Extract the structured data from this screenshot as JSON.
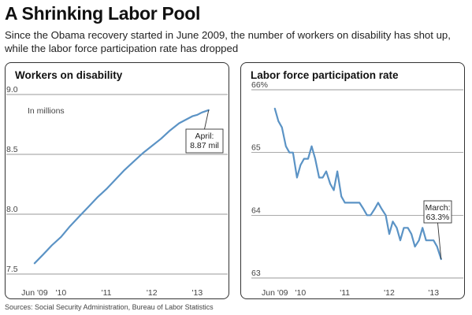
{
  "headline": "A Shrinking Labor Pool",
  "subhead": "Since the Obama recovery started in June 2009, the number of workers on disability has shot up, while the labor force participation rate has dropped",
  "source": "Sources: Social Security Administration, Bureau of Labor Statistics",
  "colors": {
    "line": "#5b93c5",
    "grid": "#777777"
  },
  "chart_data": [
    {
      "type": "line",
      "title": "Workers on disability",
      "unit_note": "In millions",
      "ylim": [
        7.5,
        9.0
      ],
      "yticks": [
        "9.0",
        "8.5",
        "8.0",
        "7.5"
      ],
      "ytick_values": [
        9.0,
        8.5,
        8.0,
        7.5
      ],
      "xlim": [
        2009.3,
        2013.6
      ],
      "xticks": [
        "Jun '09",
        "'10",
        "'11",
        "'12",
        "'13"
      ],
      "xtick_values": [
        2009.42,
        2010.0,
        2011.0,
        2012.0,
        2013.0
      ],
      "grid": true,
      "annotation": {
        "lines": [
          "April:",
          "8.87 mil"
        ],
        "x": 2013.25,
        "y": 8.87
      },
      "series": [
        {
          "x": [
            2009.42,
            2009.6,
            2009.8,
            2010.0,
            2010.2,
            2010.4,
            2010.6,
            2010.8,
            2011.0,
            2011.2,
            2011.4,
            2011.6,
            2011.8,
            2012.0,
            2012.2,
            2012.4,
            2012.6,
            2012.8,
            2012.9,
            2013.0,
            2013.1,
            2013.25
          ],
          "values": [
            7.59,
            7.66,
            7.74,
            7.81,
            7.9,
            7.98,
            8.06,
            8.14,
            8.21,
            8.29,
            8.37,
            8.44,
            8.51,
            8.57,
            8.63,
            8.7,
            8.76,
            8.8,
            8.82,
            8.83,
            8.85,
            8.87
          ]
        }
      ]
    },
    {
      "type": "line",
      "title": "Labor force participation rate",
      "ylim": [
        63,
        66
      ],
      "yticks": [
        "66%",
        "65",
        "64",
        "63"
      ],
      "ytick_values": [
        66,
        65,
        64,
        63
      ],
      "xlim": [
        2009.3,
        2013.6
      ],
      "xticks": [
        "Jun '09",
        "'10",
        "'11",
        "'12",
        "'13"
      ],
      "xtick_values": [
        2009.42,
        2010.0,
        2011.0,
        2012.0,
        2013.0
      ],
      "grid": true,
      "annotation": {
        "lines": [
          "March:",
          "63.3%"
        ],
        "x": 2013.17,
        "y": 63.3
      },
      "series": [
        {
          "x": [
            2009.42,
            2009.5,
            2009.58,
            2009.67,
            2009.75,
            2009.83,
            2009.92,
            2010.0,
            2010.08,
            2010.17,
            2010.25,
            2010.33,
            2010.42,
            2010.5,
            2010.58,
            2010.67,
            2010.75,
            2010.83,
            2010.92,
            2011.0,
            2011.08,
            2011.17,
            2011.25,
            2011.33,
            2011.42,
            2011.5,
            2011.58,
            2011.67,
            2011.75,
            2011.83,
            2011.92,
            2012.0,
            2012.08,
            2012.17,
            2012.25,
            2012.33,
            2012.42,
            2012.5,
            2012.58,
            2012.67,
            2012.75,
            2012.83,
            2012.92,
            2013.0,
            2013.08,
            2013.17
          ],
          "values": [
            65.7,
            65.5,
            65.4,
            65.1,
            65.0,
            65.0,
            64.6,
            64.8,
            64.9,
            64.9,
            65.1,
            64.9,
            64.6,
            64.6,
            64.7,
            64.5,
            64.4,
            64.7,
            64.3,
            64.2,
            64.2,
            64.2,
            64.2,
            64.2,
            64.1,
            64.0,
            64.0,
            64.1,
            64.2,
            64.1,
            64.0,
            63.7,
            63.9,
            63.8,
            63.6,
            63.8,
            63.8,
            63.7,
            63.5,
            63.6,
            63.8,
            63.6,
            63.6,
            63.6,
            63.5,
            63.3
          ]
        }
      ]
    }
  ]
}
